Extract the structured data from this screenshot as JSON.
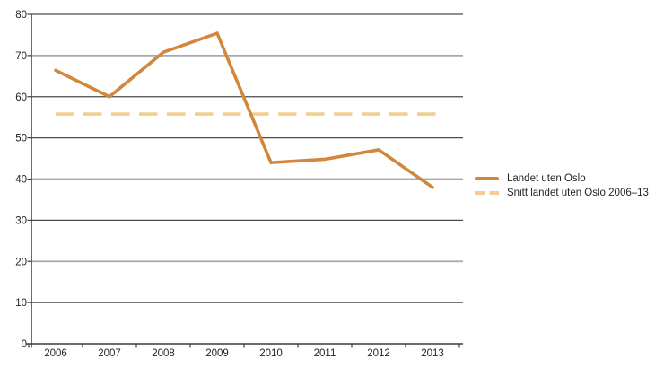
{
  "chart_data": {
    "type": "line",
    "title": "",
    "xlabel": "",
    "ylabel": "",
    "categories": [
      "2006",
      "2007",
      "2008",
      "2009",
      "2010",
      "2011",
      "2012",
      "2013"
    ],
    "series": [
      {
        "name": "Landet uten Oslo",
        "line_style": "solid",
        "color": "#D1883C",
        "values": [
          66.4,
          60,
          70.8,
          75.4,
          44,
          44.8,
          47.1,
          38
        ]
      },
      {
        "name": "Snitt landet uten Oslo 2006–13",
        "line_style": "dashed",
        "color": "#F2CD90",
        "values": [
          55.8,
          55.8,
          55.8,
          55.8,
          55.8,
          55.8,
          55.8,
          55.8
        ]
      }
    ],
    "ylim": [
      0,
      80
    ],
    "yticks": [
      0,
      10,
      20,
      30,
      40,
      50,
      60,
      70,
      80
    ],
    "grid": true,
    "legend_position": "right"
  },
  "colors": {
    "axis": "#3c3c3e",
    "grid_strong": "#4a4a4c",
    "grid_soft": "#a6a8ab",
    "tick": "#3c3c3e",
    "text": "#262324"
  }
}
